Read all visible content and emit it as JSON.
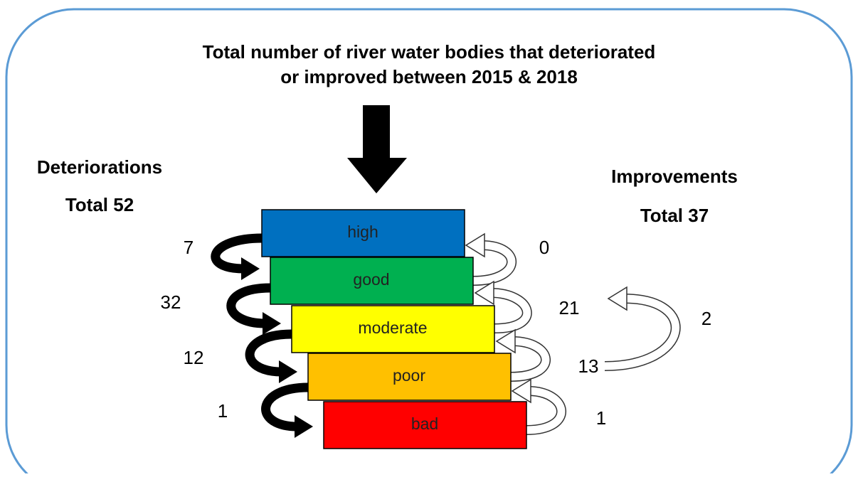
{
  "title": [
    "Total number of river water bodies that deteriorated",
    "or improved between 2015 & 2018"
  ],
  "deteriorations": {
    "label": "Deteriorations",
    "total": "Total 52",
    "counts": [
      7,
      32,
      12,
      1
    ]
  },
  "improvements": {
    "label": "Improvements",
    "total": "Total 37",
    "counts": [
      0,
      21,
      13,
      1,
      2
    ]
  },
  "levels": [
    "high",
    "good",
    "moderate",
    "poor",
    "bad"
  ]
}
